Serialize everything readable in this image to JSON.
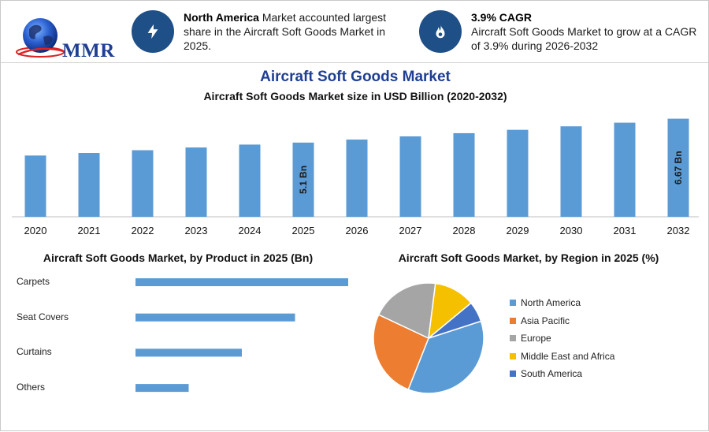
{
  "header": {
    "logo_text": "MMR",
    "highlight1": {
      "bold": "North America",
      "text": " Market accounted largest share in the Aircraft Soft Goods Market in 2025.",
      "icon": "lightning-icon"
    },
    "highlight2": {
      "title": "3.9% CAGR",
      "text": "Aircraft Soft Goods Market to grow at a CAGR of 3.9% during 2026-2032",
      "icon": "flame-icon"
    }
  },
  "title": "Aircraft Soft Goods Market",
  "colors": {
    "bar": "#5b9bd5",
    "title": "#1f3f93",
    "icon_bg": "#1e4f87"
  },
  "chart_data": [
    {
      "type": "bar",
      "title": "Aircraft Soft Goods Market size in USD Billion (2020-2032)",
      "categories": [
        "2020",
        "2021",
        "2022",
        "2023",
        "2024",
        "2025",
        "2026",
        "2027",
        "2028",
        "2029",
        "2030",
        "2031",
        "2032"
      ],
      "values": [
        4.25,
        4.42,
        4.6,
        4.78,
        4.97,
        5.1,
        5.3,
        5.51,
        5.72,
        5.94,
        6.17,
        6.41,
        6.67
      ],
      "annotations": [
        {
          "category": "2025",
          "label": "5.1 Bn"
        },
        {
          "category": "2032",
          "label": "6.67 Bn"
        }
      ],
      "xlabel": "",
      "ylabel": ""
    },
    {
      "type": "bar",
      "orientation": "horizontal",
      "title": "Aircraft Soft Goods Market, by Product in 2025 (Bn)",
      "categories": [
        "Carpets",
        "Seat Covers",
        "Curtains",
        "Others"
      ],
      "values": [
        2.0,
        1.5,
        1.0,
        0.5
      ]
    },
    {
      "type": "pie",
      "title": "Aircraft Soft Goods Market, by Region in 2025 (%)",
      "labels": [
        "North America",
        "Asia Pacific",
        "Europe",
        "Middle East and Africa",
        "South America"
      ],
      "values": [
        36,
        26,
        20,
        12,
        6
      ],
      "colors": [
        "#5b9bd5",
        "#ed7d31",
        "#a5a5a5",
        "#f5c000",
        "#4472c4"
      ],
      "legend": "right"
    }
  ]
}
